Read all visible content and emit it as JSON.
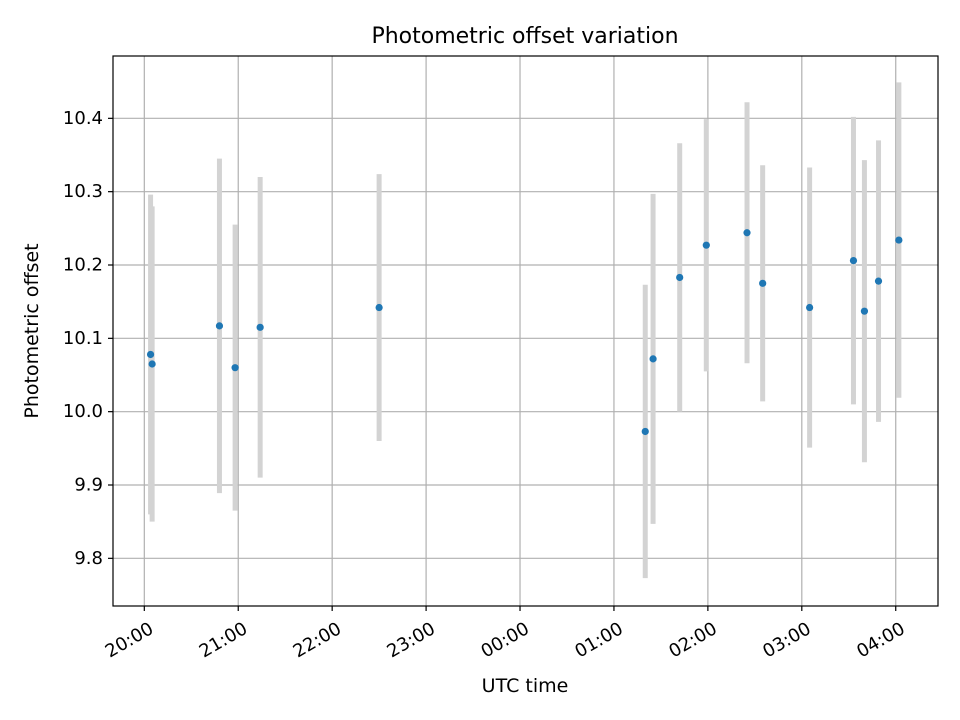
{
  "chart_data": {
    "type": "scatter",
    "title": "Photometric offset variation",
    "xlabel": "UTC time",
    "ylabel": "Photometric offset",
    "x_axis": {
      "ticks": [
        "20:00",
        "21:00",
        "22:00",
        "23:00",
        "00:00",
        "01:00",
        "02:00",
        "03:00",
        "04:00"
      ],
      "tick_labels": [
        "20:00",
        "21:00",
        "22:00",
        "23:00",
        "00:00",
        "01:00",
        "02:00",
        "03:00",
        "04:00"
      ],
      "range": [
        "19:40",
        "04:27"
      ]
    },
    "y_axis": {
      "ticks": [
        9.8,
        9.9,
        10.0,
        10.1,
        10.2,
        10.3,
        10.4
      ],
      "tick_labels": [
        "9.8",
        "9.9",
        "10.0",
        "10.1",
        "10.2",
        "10.3",
        "10.4"
      ],
      "range": [
        9.735,
        10.485
      ]
    },
    "grid": true,
    "series": [
      {
        "marker_color": "#1f77b4",
        "errorbar_color": "#d3d3d3",
        "points": [
          {
            "x": "20:04",
            "y": 10.078,
            "err": 0.218
          },
          {
            "x": "20:05",
            "y": 10.065,
            "err": 0.215
          },
          {
            "x": "20:48",
            "y": 10.117,
            "err": 0.228
          },
          {
            "x": "20:58",
            "y": 10.06,
            "err": 0.195
          },
          {
            "x": "21:14",
            "y": 10.115,
            "err": 0.205
          },
          {
            "x": "22:30",
            "y": 10.142,
            "err": 0.182
          },
          {
            "x": "01:20",
            "y": 9.973,
            "err": 0.2
          },
          {
            "x": "01:25",
            "y": 10.072,
            "err": 0.225
          },
          {
            "x": "01:42",
            "y": 10.183,
            "err": 0.183
          },
          {
            "x": "01:59",
            "y": 10.227,
            "err": 0.172
          },
          {
            "x": "02:25",
            "y": 10.244,
            "err": 0.178
          },
          {
            "x": "02:35",
            "y": 10.175,
            "err": 0.161
          },
          {
            "x": "03:05",
            "y": 10.142,
            "err": 0.191
          },
          {
            "x": "03:33",
            "y": 10.206,
            "err": 0.196
          },
          {
            "x": "03:40",
            "y": 10.137,
            "err": 0.206
          },
          {
            "x": "03:49",
            "y": 10.178,
            "err": 0.192
          },
          {
            "x": "04:02",
            "y": 10.234,
            "err": 0.215
          }
        ]
      }
    ]
  }
}
